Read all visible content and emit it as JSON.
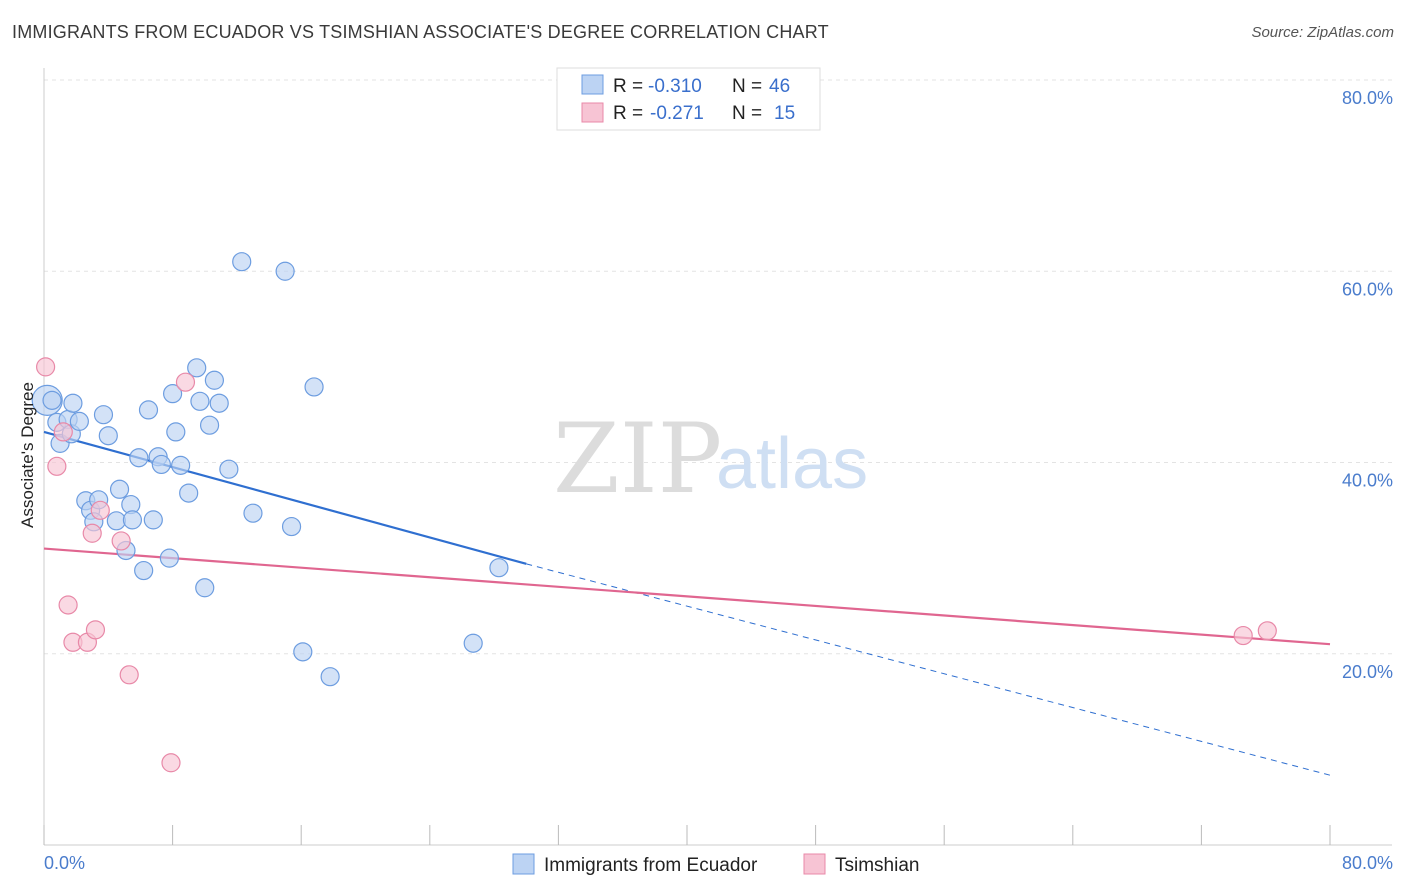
{
  "title": "IMMIGRANTS FROM ECUADOR VS TSIMSHIAN ASSOCIATE'S DEGREE CORRELATION CHART",
  "source": "Source: ZipAtlas.com",
  "chart_data": {
    "type": "scatter",
    "ylabel": "Associate's Degree",
    "xlim": [
      0,
      80
    ],
    "ylim": [
      0,
      80
    ],
    "x_tick_labels": [
      "0.0%",
      "80.0%"
    ],
    "y_ticks": [
      20,
      40,
      60,
      80
    ],
    "y_tick_labels": [
      "20.0%",
      "40.0%",
      "60.0%",
      "80.0%"
    ],
    "grid": true,
    "legend": {
      "r_label": "R =",
      "n_label": "N =",
      "entries": [
        {
          "r": "-0.310",
          "n": "46"
        },
        {
          "r": "-0.271",
          "n": "15"
        }
      ]
    },
    "watermark": {
      "zip": "ZIP",
      "atlas": "atlas"
    },
    "series": [
      {
        "name": "Immigrants from Ecuador",
        "color": "#6d9de0",
        "fill": "#bcd3f3",
        "points": [
          [
            0.2,
            46.5
          ],
          [
            0.5,
            46.5
          ],
          [
            0.8,
            44.2
          ],
          [
            1.0,
            42.0
          ],
          [
            1.5,
            44.5
          ],
          [
            1.8,
            46.2
          ],
          [
            1.7,
            43.0
          ],
          [
            2.2,
            44.3
          ],
          [
            2.6,
            36.0
          ],
          [
            2.9,
            35.0
          ],
          [
            3.1,
            33.8
          ],
          [
            3.4,
            36.1
          ],
          [
            3.7,
            45.0
          ],
          [
            4.0,
            42.8
          ],
          [
            4.5,
            33.9
          ],
          [
            4.7,
            37.2
          ],
          [
            5.1,
            30.8
          ],
          [
            5.4,
            35.6
          ],
          [
            5.5,
            34.0
          ],
          [
            5.9,
            40.5
          ],
          [
            6.2,
            28.7
          ],
          [
            6.5,
            45.5
          ],
          [
            6.8,
            34.0
          ],
          [
            7.1,
            40.6
          ],
          [
            7.3,
            39.8
          ],
          [
            7.8,
            30.0
          ],
          [
            8.0,
            47.2
          ],
          [
            8.2,
            43.2
          ],
          [
            8.5,
            39.7
          ],
          [
            9.0,
            36.8
          ],
          [
            9.5,
            49.9
          ],
          [
            9.7,
            46.4
          ],
          [
            10.0,
            26.9
          ],
          [
            10.3,
            43.9
          ],
          [
            10.6,
            48.6
          ],
          [
            10.9,
            46.2
          ],
          [
            11.5,
            39.3
          ],
          [
            12.3,
            61.0
          ],
          [
            13.0,
            34.7
          ],
          [
            15.0,
            60.0
          ],
          [
            15.4,
            33.3
          ],
          [
            16.1,
            20.2
          ],
          [
            16.8,
            47.9
          ],
          [
            17.8,
            17.6
          ],
          [
            26.7,
            21.1
          ],
          [
            28.3,
            29.0
          ]
        ]
      },
      {
        "name": "Tsimshian",
        "color": "#e889a8",
        "fill": "#f7c4d4",
        "points": [
          [
            0.1,
            50.0
          ],
          [
            0.8,
            39.6
          ],
          [
            1.2,
            43.2
          ],
          [
            1.5,
            25.1
          ],
          [
            1.8,
            21.2
          ],
          [
            2.7,
            21.2
          ],
          [
            3.0,
            32.6
          ],
          [
            3.2,
            22.5
          ],
          [
            3.5,
            35.0
          ],
          [
            4.8,
            31.8
          ],
          [
            5.3,
            17.8
          ],
          [
            7.9,
            8.6
          ],
          [
            8.8,
            48.4
          ],
          [
            74.6,
            21.9
          ],
          [
            76.1,
            22.4
          ]
        ]
      }
    ],
    "trendlines": [
      {
        "series": "Immigrants from Ecuador",
        "x0": 0,
        "y0": 43.2,
        "x1": 30,
        "y1": 29.4,
        "dash_to_x": 80,
        "dash_to_y": 7.3
      },
      {
        "series": "Tsimshian",
        "x0": 0,
        "y0": 31.0,
        "x1": 80,
        "y1": 21.0
      }
    ]
  }
}
